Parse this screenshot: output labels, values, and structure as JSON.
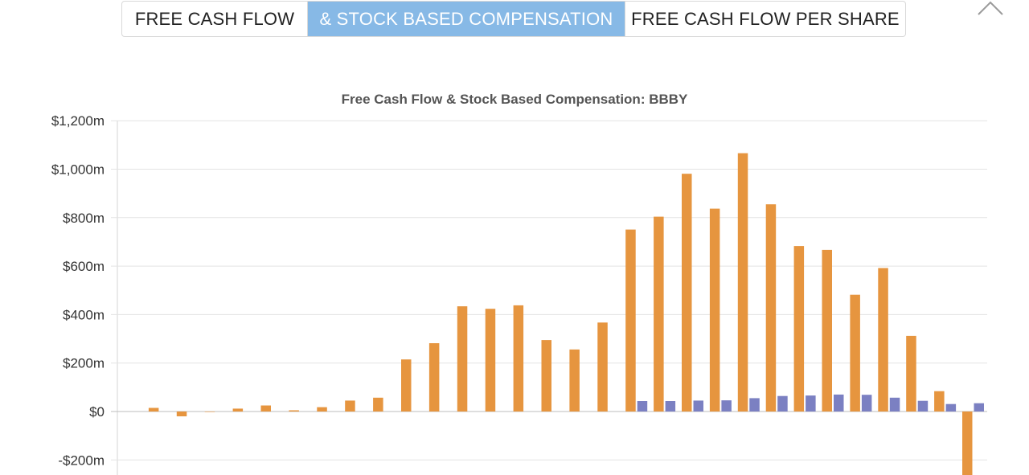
{
  "tabs": [
    {
      "label": "FREE CASH FLOW",
      "active": false
    },
    {
      "label": "& STOCK BASED COMPENSATION",
      "active": true
    },
    {
      "label": "FREE CASH FLOW PER SHARE",
      "active": false
    }
  ],
  "close_icon": "chevron-up-icon",
  "colors": {
    "fcf": "#e6953f",
    "sbc": "#7b80c2",
    "tab_active": "#87b9e6"
  },
  "chart_data": {
    "type": "bar",
    "title": "Free Cash Flow & Stock Based Compensation: BBBY",
    "ylim": [
      -200,
      1200
    ],
    "yticks": [
      -200,
      0,
      200,
      400,
      600,
      800,
      1000,
      1200
    ],
    "ytick_labels": [
      "-$200m",
      "$0",
      "$200m",
      "$400m",
      "$600m",
      "$800m",
      "$1,000m",
      "$1,200m"
    ],
    "grid": true,
    "categories": [
      "",
      "",
      "",
      "",
      "",
      "",
      "",
      "",
      "",
      "",
      "",
      "",
      "",
      "",
      "",
      "",
      "",
      "",
      "",
      "",
      "",
      "",
      "",
      "",
      "",
      "",
      "",
      "",
      "",
      "",
      ""
    ],
    "series": [
      {
        "values": [
          0,
          15,
          -20,
          -2,
          12,
          25,
          5,
          18,
          45,
          57,
          215,
          282,
          434,
          424,
          438,
          295,
          256,
          367,
          751,
          804,
          981,
          837,
          1066,
          855,
          683,
          667,
          482,
          592,
          312,
          84,
          -265
        ]
      },
      {
        "values": [
          0,
          0,
          0,
          0,
          0,
          0,
          0,
          0,
          0,
          0,
          0,
          0,
          0,
          0,
          0,
          0,
          0,
          0,
          43,
          43,
          45,
          46,
          55,
          64,
          66,
          70,
          69,
          57,
          44,
          31,
          34
        ]
      }
    ]
  }
}
